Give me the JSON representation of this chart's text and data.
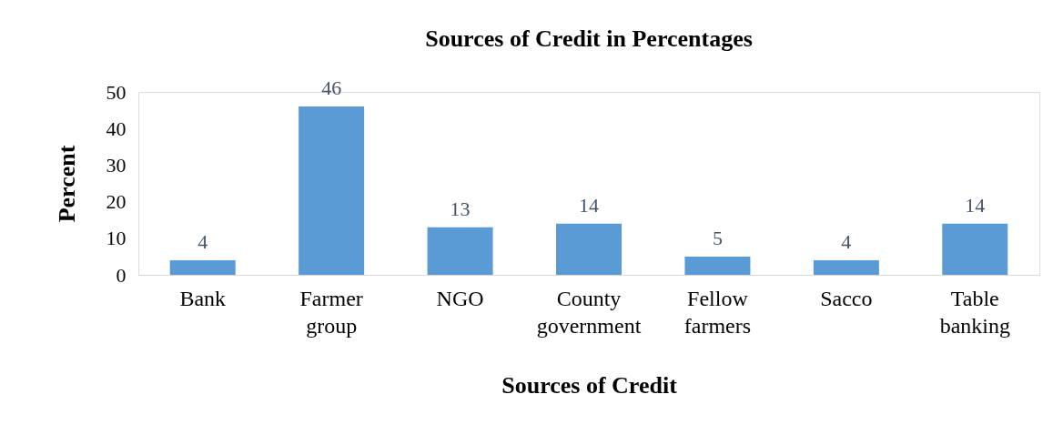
{
  "chart_data": {
    "type": "bar",
    "title": "Sources of Credit in Percentages",
    "xlabel": "Sources of Credit",
    "ylabel": "Percent",
    "categories": [
      "Bank",
      "Farmer group",
      "NGO",
      "County government",
      "Fellow farmers",
      "Sacco",
      "Table banking"
    ],
    "values": [
      4,
      46,
      13,
      14,
      5,
      4,
      14
    ],
    "color": "#5b9bd5",
    "ylim": [
      0,
      50
    ],
    "yticks": [
      0,
      10,
      20,
      30,
      40,
      50
    ],
    "grid": false,
    "data_labels": true
  }
}
